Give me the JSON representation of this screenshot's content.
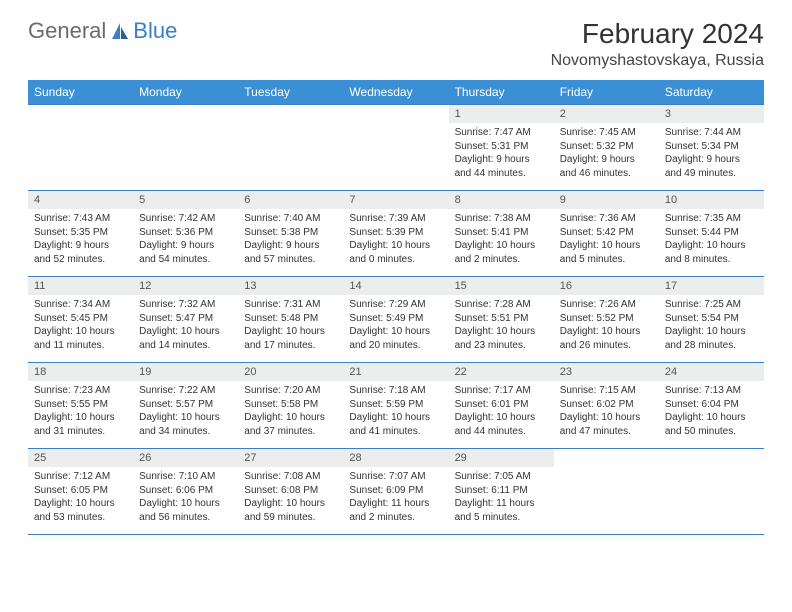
{
  "logo": {
    "text1": "General",
    "text2": "Blue"
  },
  "title": "February 2024",
  "subtitle": "Novomyshastovskaya, Russia",
  "colors": {
    "header_bg": "#3b8fd4",
    "border": "#3b7fc4",
    "daynum_bg": "#eceded"
  },
  "weekdays": [
    "Sunday",
    "Monday",
    "Tuesday",
    "Wednesday",
    "Thursday",
    "Friday",
    "Saturday"
  ],
  "weeks": [
    [
      null,
      null,
      null,
      null,
      {
        "d": "1",
        "sunrise": "7:47 AM",
        "sunset": "5:31 PM",
        "day_h": "9",
        "day_m": "44"
      },
      {
        "d": "2",
        "sunrise": "7:45 AM",
        "sunset": "5:32 PM",
        "day_h": "9",
        "day_m": "46"
      },
      {
        "d": "3",
        "sunrise": "7:44 AM",
        "sunset": "5:34 PM",
        "day_h": "9",
        "day_m": "49"
      }
    ],
    [
      {
        "d": "4",
        "sunrise": "7:43 AM",
        "sunset": "5:35 PM",
        "day_h": "9",
        "day_m": "52"
      },
      {
        "d": "5",
        "sunrise": "7:42 AM",
        "sunset": "5:36 PM",
        "day_h": "9",
        "day_m": "54"
      },
      {
        "d": "6",
        "sunrise": "7:40 AM",
        "sunset": "5:38 PM",
        "day_h": "9",
        "day_m": "57"
      },
      {
        "d": "7",
        "sunrise": "7:39 AM",
        "sunset": "5:39 PM",
        "day_h": "10",
        "day_m": "0"
      },
      {
        "d": "8",
        "sunrise": "7:38 AM",
        "sunset": "5:41 PM",
        "day_h": "10",
        "day_m": "2"
      },
      {
        "d": "9",
        "sunrise": "7:36 AM",
        "sunset": "5:42 PM",
        "day_h": "10",
        "day_m": "5"
      },
      {
        "d": "10",
        "sunrise": "7:35 AM",
        "sunset": "5:44 PM",
        "day_h": "10",
        "day_m": "8"
      }
    ],
    [
      {
        "d": "11",
        "sunrise": "7:34 AM",
        "sunset": "5:45 PM",
        "day_h": "10",
        "day_m": "11"
      },
      {
        "d": "12",
        "sunrise": "7:32 AM",
        "sunset": "5:47 PM",
        "day_h": "10",
        "day_m": "14"
      },
      {
        "d": "13",
        "sunrise": "7:31 AM",
        "sunset": "5:48 PM",
        "day_h": "10",
        "day_m": "17"
      },
      {
        "d": "14",
        "sunrise": "7:29 AM",
        "sunset": "5:49 PM",
        "day_h": "10",
        "day_m": "20"
      },
      {
        "d": "15",
        "sunrise": "7:28 AM",
        "sunset": "5:51 PM",
        "day_h": "10",
        "day_m": "23"
      },
      {
        "d": "16",
        "sunrise": "7:26 AM",
        "sunset": "5:52 PM",
        "day_h": "10",
        "day_m": "26"
      },
      {
        "d": "17",
        "sunrise": "7:25 AM",
        "sunset": "5:54 PM",
        "day_h": "10",
        "day_m": "28"
      }
    ],
    [
      {
        "d": "18",
        "sunrise": "7:23 AM",
        "sunset": "5:55 PM",
        "day_h": "10",
        "day_m": "31"
      },
      {
        "d": "19",
        "sunrise": "7:22 AM",
        "sunset": "5:57 PM",
        "day_h": "10",
        "day_m": "34"
      },
      {
        "d": "20",
        "sunrise": "7:20 AM",
        "sunset": "5:58 PM",
        "day_h": "10",
        "day_m": "37"
      },
      {
        "d": "21",
        "sunrise": "7:18 AM",
        "sunset": "5:59 PM",
        "day_h": "10",
        "day_m": "41"
      },
      {
        "d": "22",
        "sunrise": "7:17 AM",
        "sunset": "6:01 PM",
        "day_h": "10",
        "day_m": "44"
      },
      {
        "d": "23",
        "sunrise": "7:15 AM",
        "sunset": "6:02 PM",
        "day_h": "10",
        "day_m": "47"
      },
      {
        "d": "24",
        "sunrise": "7:13 AM",
        "sunset": "6:04 PM",
        "day_h": "10",
        "day_m": "50"
      }
    ],
    [
      {
        "d": "25",
        "sunrise": "7:12 AM",
        "sunset": "6:05 PM",
        "day_h": "10",
        "day_m": "53"
      },
      {
        "d": "26",
        "sunrise": "7:10 AM",
        "sunset": "6:06 PM",
        "day_h": "10",
        "day_m": "56"
      },
      {
        "d": "27",
        "sunrise": "7:08 AM",
        "sunset": "6:08 PM",
        "day_h": "10",
        "day_m": "59"
      },
      {
        "d": "28",
        "sunrise": "7:07 AM",
        "sunset": "6:09 PM",
        "day_h": "11",
        "day_m": "2"
      },
      {
        "d": "29",
        "sunrise": "7:05 AM",
        "sunset": "6:11 PM",
        "day_h": "11",
        "day_m": "5"
      },
      null,
      null
    ]
  ]
}
